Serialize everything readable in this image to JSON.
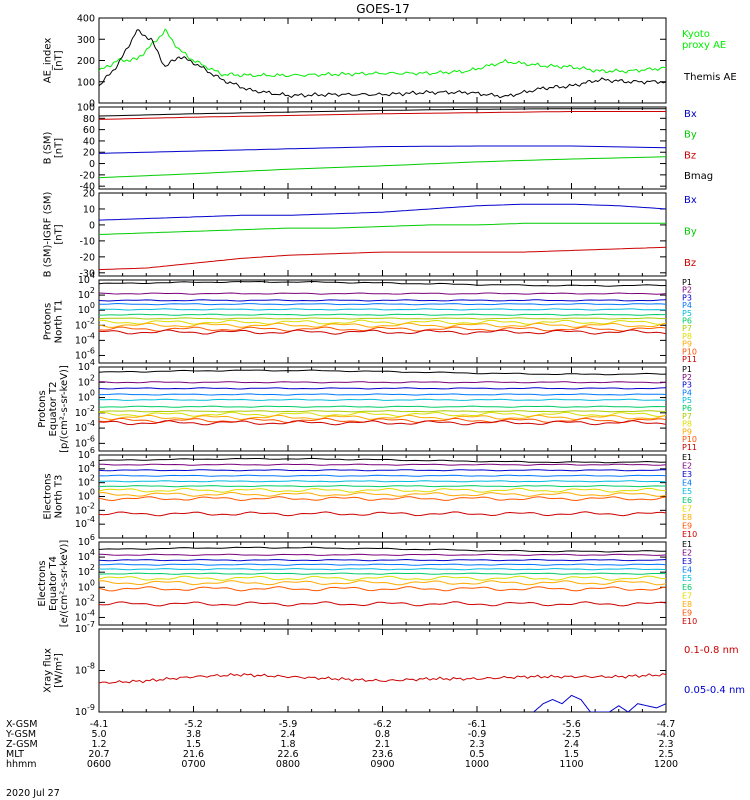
{
  "title": "GOES-17",
  "date_label": "2020 Jul 27",
  "orbit": {
    "row_labels": [
      "X-GSM",
      "Y-GSM",
      "Z-GSM",
      "MLT",
      "hhmm"
    ],
    "columns": [
      [
        "-4.1",
        "5.0",
        "1.2",
        "20.7",
        "0600"
      ],
      [
        "-5.2",
        "3.8",
        "1.5",
        "21.6",
        "0700"
      ],
      [
        "-5.9",
        "2.4",
        "1.8",
        "22.6",
        "0800"
      ],
      [
        "-6.2",
        "0.8",
        "2.1",
        "23.6",
        "0900"
      ],
      [
        "-6.1",
        "-0.9",
        "2.3",
        "0.5",
        "1000"
      ],
      [
        "-5.6",
        "-2.5",
        "2.4",
        "1.5",
        "1100"
      ],
      [
        "-4.7",
        "-4.0",
        "2.3",
        "2.5",
        "1200"
      ]
    ]
  },
  "chart_data": [
    {
      "type": "line",
      "ylabel": [
        "AE_index",
        "[nT]"
      ],
      "ylim": [
        0,
        400
      ],
      "yticks": [
        {
          "v": 0,
          "t": "0"
        },
        {
          "v": 100,
          "t": "100"
        },
        {
          "v": 200,
          "t": "200"
        },
        {
          "v": 300,
          "t": "300"
        },
        {
          "v": 400,
          "t": "400"
        }
      ],
      "x": [
        0,
        0.2,
        0.4,
        0.55,
        0.7,
        0.85,
        1.0,
        1.3,
        1.6,
        2.0,
        2.5,
        3.0,
        3.5,
        3.9,
        4.3,
        4.7,
        5.0,
        5.3,
        5.6,
        6.0
      ],
      "series": [
        {
          "name": "Kyoto proxy AE",
          "color": "#00ee00",
          "label_lines": [
            "Kyoto",
            "proxy AE"
          ],
          "values": [
            150,
            200,
            205,
            270,
            340,
            250,
            200,
            135,
            130,
            130,
            135,
            140,
            140,
            150,
            195,
            175,
            170,
            150,
            150,
            165
          ]
        },
        {
          "name": "Themis AE",
          "color": "#000000",
          "label_lines": [
            "Themis AE"
          ],
          "values": [
            80,
            180,
            340,
            300,
            170,
            220,
            190,
            110,
            60,
            35,
            40,
            40,
            50,
            50,
            30,
            70,
            80,
            110,
            100,
            100
          ]
        }
      ]
    },
    {
      "type": "line",
      "ylabel": [
        "B (SM)",
        "[nT]"
      ],
      "ylim": [
        -45,
        100
      ],
      "yticks": [
        {
          "v": -40,
          "t": "-40"
        },
        {
          "v": -20,
          "t": "-20"
        },
        {
          "v": 0,
          "t": "0"
        },
        {
          "v": 20,
          "t": "20"
        },
        {
          "v": 40,
          "t": "40"
        },
        {
          "v": 60,
          "t": "60"
        },
        {
          "v": 80,
          "t": "80"
        },
        {
          "v": 100,
          "t": "100"
        }
      ],
      "x": [
        0,
        1,
        2,
        3,
        4,
        5,
        6
      ],
      "series": [
        {
          "name": "Bx",
          "color": "#0000cc",
          "values": [
            18,
            22,
            26,
            30,
            31,
            31,
            28
          ]
        },
        {
          "name": "By",
          "color": "#00cc00",
          "values": [
            -25,
            -18,
            -10,
            -4,
            3,
            8,
            12
          ]
        },
        {
          "name": "Bz",
          "color": "#cc0000",
          "values": [
            78,
            82,
            85,
            88,
            90,
            92,
            92
          ]
        },
        {
          "name": "Bmag",
          "color": "#000000",
          "values": [
            84,
            88,
            91,
            94,
            96,
            97,
            97
          ]
        }
      ]
    },
    {
      "type": "line",
      "ylabel": [
        "B (SM)-IGRF (SM)",
        "[nT]"
      ],
      "ylim": [
        -32,
        20
      ],
      "yticks": [
        {
          "v": -30,
          "t": "-30"
        },
        {
          "v": -20,
          "t": "-20"
        },
        {
          "v": -10,
          "t": "-10"
        },
        {
          "v": 0,
          "t": "0"
        },
        {
          "v": 10,
          "t": "10"
        },
        {
          "v": 20,
          "t": "20"
        }
      ],
      "x": [
        0,
        0.5,
        1,
        1.5,
        2,
        2.5,
        3,
        3.5,
        4,
        4.5,
        5,
        5.5,
        6
      ],
      "series": [
        {
          "name": "Bx",
          "color": "#0000cc",
          "values": [
            3,
            4,
            5,
            6,
            6,
            7,
            8,
            10,
            12,
            13,
            13,
            12,
            10
          ]
        },
        {
          "name": "By",
          "color": "#00cc00",
          "values": [
            -6,
            -5,
            -4,
            -3,
            -2,
            -2,
            -1,
            0,
            0,
            1,
            1,
            1,
            1
          ]
        },
        {
          "name": "Bz",
          "color": "#cc0000",
          "values": [
            -28,
            -27,
            -24,
            -21,
            -19,
            -18,
            -17,
            -17,
            -17,
            -17,
            -16,
            -15,
            -14
          ]
        }
      ]
    },
    {
      "type": "line",
      "log": true,
      "ylabel": [
        "Protons",
        "North T1"
      ],
      "ylim_exp": [
        -7,
        4
      ],
      "ytick_exps": [
        -6,
        -4,
        -2,
        0,
        2,
        4
      ],
      "channel_values": [
        3.5,
        2.2,
        1.3,
        0.8,
        0.1,
        -0.6,
        -1.1,
        -1.6,
        -2.0,
        -2.5,
        -2.9
      ],
      "series": [
        {
          "name": "P1",
          "color": "#000000"
        },
        {
          "name": "P2",
          "color": "#7a007a"
        },
        {
          "name": "P3",
          "color": "#0000cc"
        },
        {
          "name": "P4",
          "color": "#0077ff"
        },
        {
          "name": "P5",
          "color": "#00bbdd"
        },
        {
          "name": "P6",
          "color": "#00cc66"
        },
        {
          "name": "P7",
          "color": "#aacc00"
        },
        {
          "name": "P8",
          "color": "#dddd00"
        },
        {
          "name": "P9",
          "color": "#ffaa00"
        },
        {
          "name": "P10",
          "color": "#ff5500"
        },
        {
          "name": "P11",
          "color": "#cc0000"
        }
      ]
    },
    {
      "type": "line",
      "log": true,
      "ylabel": [
        "Protons",
        "Equator T2",
        "[p/(cm²-s-sr-keV)]"
      ],
      "ylim_exp": [
        -7,
        4
      ],
      "ytick_exps": [
        -6,
        -4,
        -2,
        0,
        2,
        4
      ],
      "channel_values": [
        3.3,
        2.0,
        1.2,
        0.4,
        -0.3,
        -1.2,
        -1.8,
        -2.2,
        -2.6,
        -3.0,
        -3.3
      ],
      "series": [
        {
          "name": "P1",
          "color": "#000000"
        },
        {
          "name": "P2",
          "color": "#7a007a"
        },
        {
          "name": "P3",
          "color": "#0000cc"
        },
        {
          "name": "P4",
          "color": "#0077ff"
        },
        {
          "name": "P5",
          "color": "#00bbdd"
        },
        {
          "name": "P6",
          "color": "#00cc66"
        },
        {
          "name": "P7",
          "color": "#aacc00"
        },
        {
          "name": "P8",
          "color": "#dddd00"
        },
        {
          "name": "P9",
          "color": "#ffaa00"
        },
        {
          "name": "P10",
          "color": "#ff5500"
        },
        {
          "name": "P11",
          "color": "#cc0000"
        }
      ]
    },
    {
      "type": "line",
      "log": true,
      "ylabel": [
        "Electrons",
        "North T3"
      ],
      "ylim_exp": [
        -6,
        6
      ],
      "ytick_exps": [
        -4,
        -2,
        0,
        2,
        4,
        6
      ],
      "channel_values": [
        5.2,
        4.6,
        3.8,
        3.0,
        2.2,
        1.5,
        0.9,
        0.3,
        -0.3,
        -2.5
      ],
      "series": [
        {
          "name": "E1",
          "color": "#000000"
        },
        {
          "name": "E2",
          "color": "#7a007a"
        },
        {
          "name": "E3",
          "color": "#0000cc"
        },
        {
          "name": "E4",
          "color": "#0077ff"
        },
        {
          "name": "E5",
          "color": "#00bbdd"
        },
        {
          "name": "E6",
          "color": "#00cc66"
        },
        {
          "name": "E7",
          "color": "#dddd00"
        },
        {
          "name": "E8",
          "color": "#ffaa00"
        },
        {
          "name": "E9",
          "color": "#ff5500"
        },
        {
          "name": "E10",
          "color": "#cc0000"
        }
      ]
    },
    {
      "type": "line",
      "log": true,
      "ylabel": [
        "Electrons",
        "Equator T4",
        "[e/(cm²-s-sr-keV)]"
      ],
      "ylim_exp": [
        -5,
        6
      ],
      "ytick_exps": [
        -4,
        -2,
        0,
        2,
        4,
        6
      ],
      "channel_values": [
        5.0,
        4.3,
        3.6,
        3.0,
        2.4,
        1.8,
        1.2,
        0.6,
        -0.2,
        -2.2
      ],
      "series": [
        {
          "name": "E1",
          "color": "#000000"
        },
        {
          "name": "E2",
          "color": "#7a007a"
        },
        {
          "name": "E3",
          "color": "#0000cc"
        },
        {
          "name": "E4",
          "color": "#0077ff"
        },
        {
          "name": "E5",
          "color": "#00bbdd"
        },
        {
          "name": "E6",
          "color": "#00cc66"
        },
        {
          "name": "E7",
          "color": "#dddd00"
        },
        {
          "name": "E8",
          "color": "#ffaa00"
        },
        {
          "name": "E9",
          "color": "#ff5500"
        },
        {
          "name": "E10",
          "color": "#cc0000"
        }
      ]
    },
    {
      "type": "line",
      "log": true,
      "ylabel": [
        "Xray flux",
        "[W/m²]"
      ],
      "ylim_exp": [
        -9,
        -7
      ],
      "ytick_exps": [
        -9,
        -8,
        -7
      ],
      "series": [
        {
          "name": "0.1-0.8 nm",
          "color": "#cc0000",
          "x": [
            0,
            0.5,
            1,
            1.5,
            2,
            2.5,
            3,
            3.5,
            4,
            4.5,
            5,
            5.5,
            6
          ],
          "values": [
            -8.3,
            -8.25,
            -8.15,
            -8.1,
            -8.15,
            -8.2,
            -8.25,
            -8.2,
            -8.2,
            -8.15,
            -8.15,
            -8.15,
            -8.1
          ]
        },
        {
          "name": "0.05-0.4 nm",
          "color": "#0000cc",
          "x": [
            4.6,
            4.7,
            4.8,
            4.9,
            5.0,
            5.1,
            5.2,
            5.4,
            5.5,
            5.6,
            5.7,
            5.9,
            6.0
          ],
          "values": [
            -9.0,
            -8.8,
            -8.7,
            -8.8,
            -8.6,
            -8.7,
            -9.0,
            -9.0,
            -8.85,
            -9.0,
            -8.8,
            -8.9,
            -8.8
          ]
        }
      ]
    }
  ]
}
